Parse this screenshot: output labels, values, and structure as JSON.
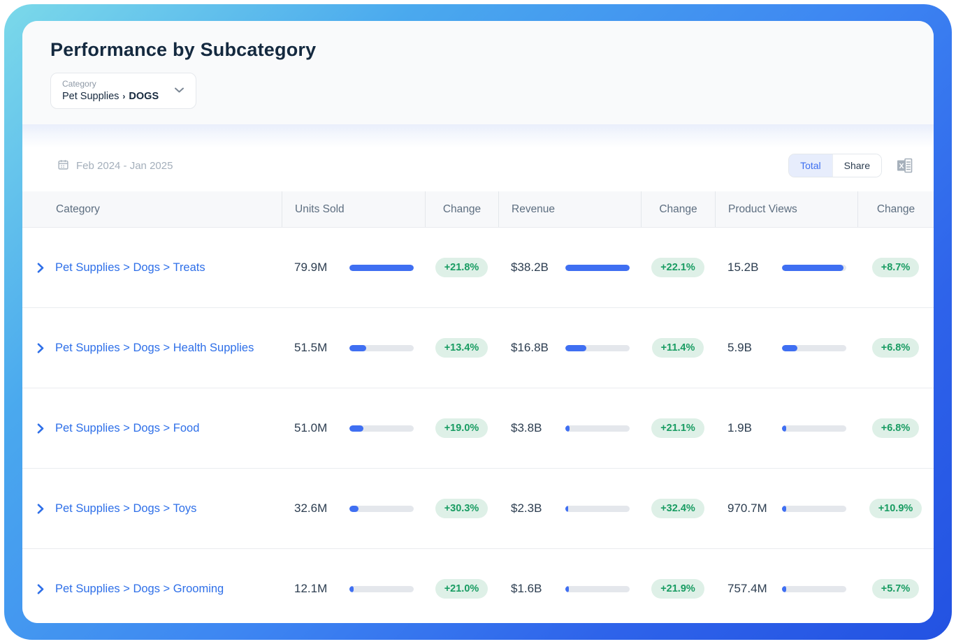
{
  "page_title": "Performance by Subcategory",
  "category_filter": {
    "label": "Category",
    "value": "Pet Supplies",
    "separator": "›",
    "subcategory": "DOGS"
  },
  "toolbar": {
    "date_range": "Feb 2024 - Jan 2025",
    "toggle_total": "Total",
    "toggle_share": "Share"
  },
  "icons": {
    "calendar": "calendar-icon",
    "dropdown_chevron": "chevron-down-icon",
    "row_chevron": "chevron-right-icon",
    "export_excel": "excel-export-icon"
  },
  "table": {
    "columns": [
      "Category",
      "Units Sold",
      "Change",
      "Revenue",
      "Change",
      "Product Views",
      "Change"
    ],
    "rows": [
      {
        "category": "Pet Supplies > Dogs > Treats",
        "units_sold": "79.9M",
        "units_bar_pct": 100,
        "units_change": "+21.8%",
        "revenue": "$38.2B",
        "revenue_bar_pct": 100,
        "revenue_change": "+22.1%",
        "product_views": "15.2B",
        "views_bar_pct": 96,
        "views_change": "+8.7%"
      },
      {
        "category": "Pet Supplies > Dogs > Health Supplies",
        "units_sold": "51.5M",
        "units_bar_pct": 26,
        "units_change": "+13.4%",
        "revenue": "$16.8B",
        "revenue_bar_pct": 33,
        "revenue_change": "+11.4%",
        "product_views": "5.9B",
        "views_bar_pct": 24,
        "views_change": "+6.8%"
      },
      {
        "category": "Pet Supplies > Dogs > Food",
        "units_sold": "51.0M",
        "units_bar_pct": 22,
        "units_change": "+19.0%",
        "revenue": "$3.8B",
        "revenue_bar_pct": 6,
        "revenue_change": "+21.1%",
        "product_views": "1.9B",
        "views_bar_pct": 6,
        "views_change": "+6.8%"
      },
      {
        "category": "Pet Supplies > Dogs > Toys",
        "units_sold": "32.6M",
        "units_bar_pct": 14,
        "units_change": "+30.3%",
        "revenue": "$2.3B",
        "revenue_bar_pct": 4,
        "revenue_change": "+32.4%",
        "product_views": "970.7M",
        "views_bar_pct": 7,
        "views_change": "+10.9%"
      },
      {
        "category": "Pet Supplies > Dogs > Grooming",
        "units_sold": "12.1M",
        "units_bar_pct": 7,
        "units_change": "+21.0%",
        "revenue": "$1.6B",
        "revenue_bar_pct": 5,
        "revenue_change": "+21.9%",
        "product_views": "757.4M",
        "views_bar_pct": 6,
        "views_change": "+5.7%"
      }
    ]
  },
  "colors": {
    "accent_blue": "#3f6ff2",
    "link_blue": "#2e6fe8",
    "badge_bg": "#def0e7",
    "badge_text": "#189c62",
    "bar_track": "#e4e7ec",
    "frame_gradient_start": "#7bd9ea",
    "frame_gradient_end": "#2352e2"
  }
}
